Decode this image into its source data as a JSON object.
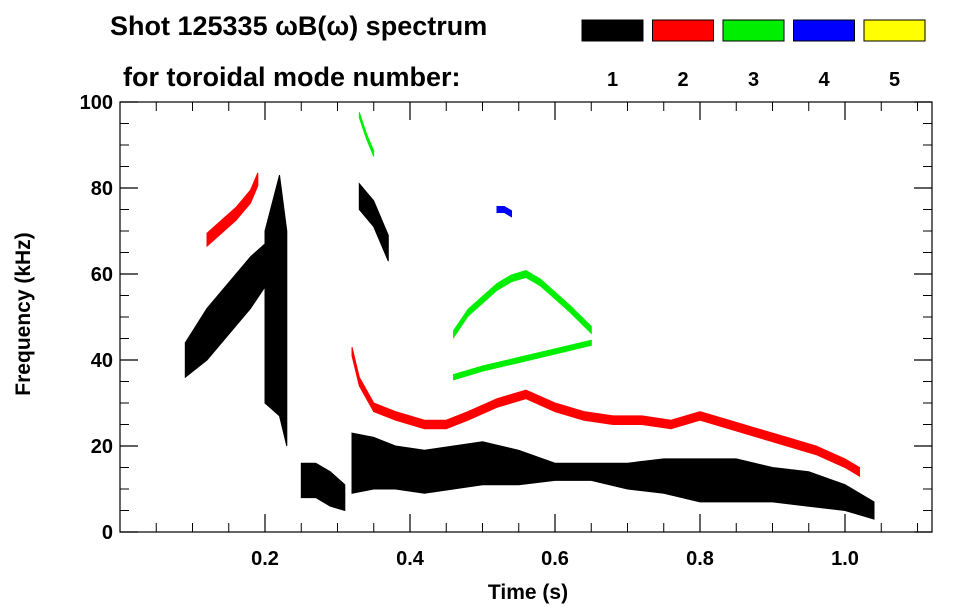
{
  "chart_data": {
    "type": "heatmap",
    "title": "Shot 125335 ωB(ω) spectrum",
    "subtitle": "for toroidal mode number:",
    "xlabel": "Time (s)",
    "ylabel": "Frequency (kHz)",
    "xlim": [
      0.0,
      1.12
    ],
    "ylim": [
      0,
      100
    ],
    "x_ticks": [
      0.2,
      0.4,
      0.6,
      0.8,
      1.0
    ],
    "x_tick_labels": [
      "0.2",
      "0.4",
      "0.6",
      "0.8",
      "1.0"
    ],
    "y_ticks": [
      0,
      20,
      40,
      60,
      80,
      100
    ],
    "y_tick_labels": [
      "0",
      "20",
      "40",
      "60",
      "80",
      "100"
    ],
    "grid": false,
    "legend_position": "top-right",
    "legend": [
      {
        "label": "1",
        "color": "#000000"
      },
      {
        "label": "2",
        "color": "#ff0000"
      },
      {
        "label": "3",
        "color": "#00ee00"
      },
      {
        "label": "4",
        "color": "#0000ff"
      },
      {
        "label": "5",
        "color": "#ffff00"
      }
    ],
    "series": [
      {
        "mode": "1",
        "color": "#000000",
        "bands": [
          {
            "x": [
              0.32,
              0.35,
              0.38,
              0.42,
              0.46,
              0.5,
              0.55,
              0.6,
              0.65,
              0.7,
              0.75,
              0.8,
              0.85,
              0.9,
              0.95,
              1.0,
              1.04
            ],
            "center": [
              16,
              16,
              15,
              14,
              15,
              16,
              15,
              14,
              14,
              13,
              13,
              12,
              12,
              11,
              10,
              8,
              5
            ],
            "half_width": [
              7,
              6,
              5,
              5,
              5,
              5,
              4,
              2,
              2,
              3,
              4,
              5,
              5,
              4,
              4,
              3,
              2
            ]
          },
          {
            "x": [
              0.09,
              0.12,
              0.15,
              0.18,
              0.2,
              0.22
            ],
            "center": [
              40,
              46,
              52,
              58,
              62,
              66
            ],
            "half_width": [
              4,
              6,
              6,
              6,
              5,
              5
            ]
          },
          {
            "x": [
              0.2,
              0.22,
              0.23
            ],
            "center": [
              50,
              55,
              45
            ],
            "half_width": [
              20,
              28,
              25
            ]
          },
          {
            "x": [
              0.25,
              0.27,
              0.29,
              0.31
            ],
            "center": [
              12,
              12,
              10,
              8
            ],
            "half_width": [
              4,
              4,
              4,
              3
            ]
          },
          {
            "x": [
              0.33,
              0.35,
              0.37
            ],
            "center": [
              78,
              74,
              66
            ],
            "half_width": [
              3,
              3,
              3
            ]
          }
        ]
      },
      {
        "mode": "2",
        "color": "#ff0000",
        "bands": [
          {
            "x": [
              0.12,
              0.14,
              0.16,
              0.18,
              0.19
            ],
            "center": [
              68,
              71,
              74,
              78,
              82
            ],
            "half_width": [
              1.5,
              1.5,
              1.5,
              1.5,
              1.5
            ]
          },
          {
            "x": [
              0.32,
              0.33,
              0.35,
              0.38,
              0.42,
              0.45,
              0.48,
              0.52,
              0.56,
              0.6,
              0.64,
              0.68,
              0.72,
              0.76,
              0.8,
              0.84,
              0.88,
              0.92,
              0.96,
              1.0,
              1.02
            ],
            "center": [
              42,
              35,
              29,
              27,
              25,
              25,
              27,
              30,
              32,
              29,
              27,
              26,
              26,
              25,
              27,
              25,
              23,
              21,
              19,
              16,
              14
            ],
            "half_width": [
              1,
              1,
              1,
              1,
              1,
              1,
              1,
              1,
              1,
              1,
              1,
              1,
              1,
              1,
              1,
              1,
              1,
              1,
              1,
              1,
              1
            ]
          }
        ]
      },
      {
        "mode": "3",
        "color": "#00ee00",
        "bands": [
          {
            "x": [
              0.46,
              0.48,
              0.5,
              0.52,
              0.54,
              0.56,
              0.58,
              0.6,
              0.62,
              0.65
            ],
            "center": [
              46,
              51,
              54,
              57,
              59,
              60,
              58,
              55,
              52,
              47
            ],
            "half_width": [
              0.8,
              0.8,
              0.8,
              0.8,
              0.8,
              0.8,
              0.8,
              0.8,
              0.8,
              0.8
            ]
          },
          {
            "x": [
              0.46,
              0.5,
              0.55,
              0.6,
              0.65
            ],
            "center": [
              36,
              38,
              40,
              42,
              44
            ],
            "half_width": [
              0.6,
              0.6,
              0.6,
              0.6,
              0.6
            ]
          },
          {
            "x": [
              0.33,
              0.34,
              0.35
            ],
            "center": [
              97,
              92,
              88
            ],
            "half_width": [
              0.6,
              0.6,
              0.6
            ]
          }
        ]
      },
      {
        "mode": "4",
        "color": "#0000ff",
        "bands": [
          {
            "x": [
              0.52,
              0.53,
              0.54
            ],
            "center": [
              75,
              75,
              74
            ],
            "half_width": [
              0.7,
              0.7,
              0.7
            ]
          }
        ]
      },
      {
        "mode": "5",
        "color": "#ffff00",
        "bands": []
      }
    ]
  }
}
